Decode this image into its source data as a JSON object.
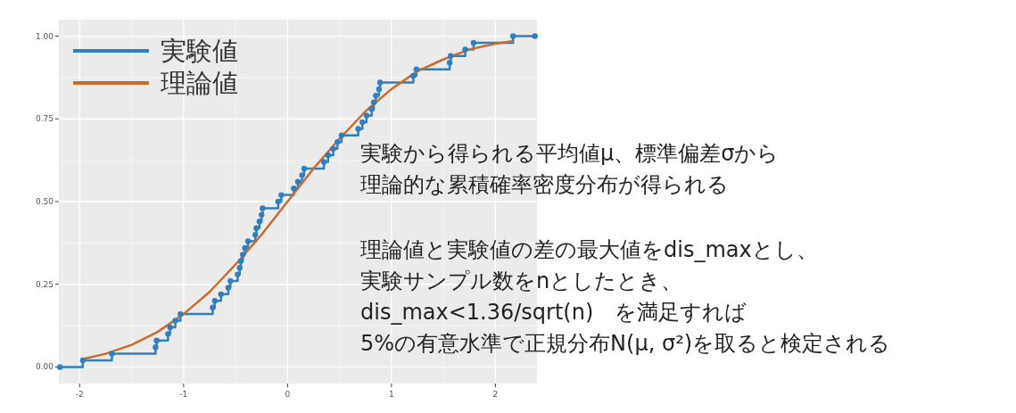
{
  "chart_data": {
    "type": "step",
    "xlim": [
      -2.2,
      2.4
    ],
    "ylim": [
      -0.05,
      1.05
    ],
    "xticks": [
      -2,
      -1,
      0,
      1,
      2
    ],
    "yticks": [
      {
        "value": 0,
        "label": "0.00"
      },
      {
        "value": 0.25,
        "label": "0.25"
      },
      {
        "value": 0.5,
        "label": "0.50"
      },
      {
        "value": 0.75,
        "label": "0.75"
      },
      {
        "value": 1,
        "label": "1.00"
      }
    ],
    "grid": true,
    "legend": "top left",
    "series": [
      {
        "name": "実験値",
        "color": "#2f7fc0",
        "marker": "circle",
        "x": [
          -2.19,
          -1.97,
          -1.69,
          -1.27,
          -1.26,
          -1.15,
          -1.13,
          -1.08,
          -1.03,
          -0.72,
          -0.7,
          -0.64,
          -0.57,
          -0.55,
          -0.48,
          -0.46,
          -0.45,
          -0.43,
          -0.41,
          -0.38,
          -0.31,
          -0.3,
          -0.27,
          -0.25,
          -0.24,
          -0.09,
          -0.06,
          0.06,
          0.1,
          0.14,
          0.16,
          0.35,
          0.39,
          0.44,
          0.48,
          0.52,
          0.68,
          0.72,
          0.76,
          0.81,
          0.83,
          0.85,
          0.88,
          0.89,
          1.21,
          1.24,
          1.56,
          1.57,
          1.71,
          1.79,
          2.17,
          2.38
        ],
        "values": [
          0,
          0.02,
          0.04,
          0.06,
          0.08,
          0.1,
          0.12,
          0.14,
          0.16,
          0.18,
          0.2,
          0.22,
          0.24,
          0.26,
          0.28,
          0.3,
          0.32,
          0.34,
          0.36,
          0.38,
          0.4,
          0.42,
          0.44,
          0.46,
          0.48,
          0.5,
          0.52,
          0.54,
          0.56,
          0.58,
          0.6,
          0.62,
          0.64,
          0.66,
          0.68,
          0.7,
          0.72,
          0.74,
          0.76,
          0.78,
          0.8,
          0.82,
          0.84,
          0.86,
          0.88,
          0.9,
          0.92,
          0.94,
          0.96,
          0.98,
          1.0,
          1.0
        ]
      },
      {
        "name": "理論値",
        "type": "line",
        "color": "#cc6a2a",
        "marker": "none",
        "x": [
          -1.97,
          -1.75,
          -1.5,
          -1.25,
          -1.0,
          -0.75,
          -0.5,
          -0.25,
          0,
          0.25,
          0.5,
          0.75,
          1.0,
          1.25,
          1.5,
          1.75,
          2.0,
          2.17
        ],
        "values": [
          0.024,
          0.04,
          0.067,
          0.106,
          0.16,
          0.227,
          0.31,
          0.4,
          0.5,
          0.6,
          0.69,
          0.773,
          0.84,
          0.894,
          0.93,
          0.96,
          0.977,
          0.985
        ]
      }
    ],
    "annotations": [
      "実験から得られる平均値μ、標準偏差σから",
      "理論的な累積確率密度分布が得られる",
      "理論値と実験値の差の最大値をdis_maxとし、",
      "実験サンプル数をnとしたとき、",
      "dis_max<1.36/sqrt(n)　を満足すれば",
      "5%の有意水準で正規分布N(μ, σ²)を取ると検定される"
    ]
  }
}
